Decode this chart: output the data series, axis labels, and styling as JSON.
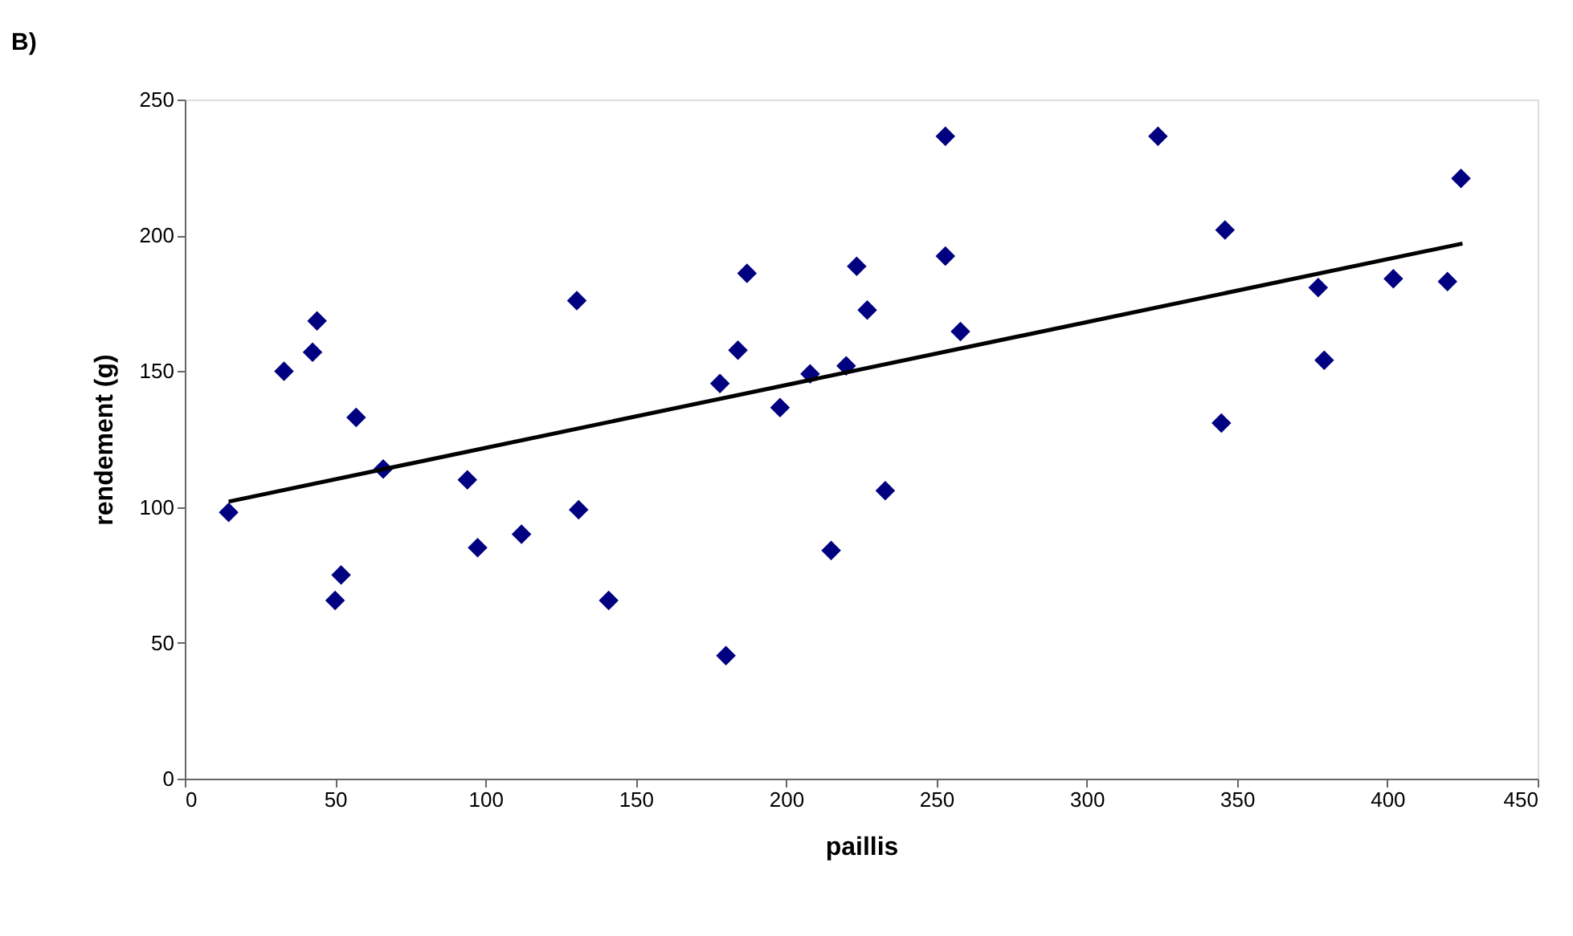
{
  "chart_data": {
    "type": "scatter",
    "title": "B)",
    "xlabel": "paillis",
    "ylabel": "rendement (g)",
    "xlim": [
      0,
      450
    ],
    "xticks": [
      0,
      50,
      100,
      150,
      200,
      250,
      300,
      350,
      400,
      450
    ],
    "ylim": [
      0,
      250
    ],
    "yticks": [
      0,
      50,
      100,
      150,
      200,
      250
    ],
    "grid": false,
    "marker": "diamond",
    "series": [
      {
        "color": "#000080",
        "x": [
          14.6,
          33,
          42.5,
          44,
          57,
          66,
          52,
          50,
          94,
          97.4,
          112,
          130.4,
          131,
          141,
          178,
          180,
          184,
          187,
          198,
          208,
          215,
          220,
          223.5,
          227,
          233,
          253,
          253,
          258,
          323.7,
          346,
          344.8,
          377,
          379,
          402,
          420,
          424.5
        ],
        "values": [
          98,
          150,
          157,
          168.5,
          133,
          114,
          75,
          65.6,
          110,
          85,
          90,
          176,
          99,
          65.6,
          145.5,
          45.3,
          157.7,
          186,
          136.6,
          149,
          84,
          152,
          188.6,
          172.5,
          106,
          236.5,
          192.4,
          164.6,
          236.5,
          202,
          130.9,
          180.8,
          154,
          184,
          183,
          221
        ]
      },
      {
        "color": "#000000",
        "type": "line",
        "marker": "none",
        "line_style": "solid",
        "x": [
          14.6,
          425
        ],
        "values": [
          102,
          197
        ]
      }
    ]
  }
}
